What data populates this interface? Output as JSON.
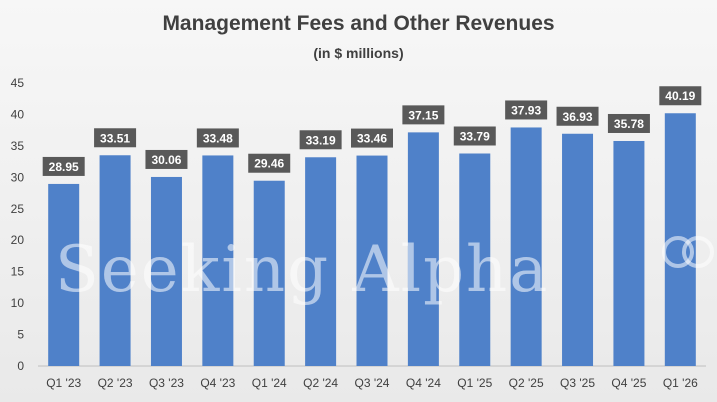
{
  "chart_data": {
    "type": "bar",
    "title": "Management Fees and Other Revenues",
    "subtitle": "(in $ millions)",
    "categories": [
      "Q1 '23",
      "Q2 '23",
      "Q3 '23",
      "Q4 '23",
      "Q1 '24",
      "Q2 '24",
      "Q3 '24",
      "Q4 '24",
      "Q1 '25",
      "Q2 '25",
      "Q3 '25",
      "Q4 '25",
      "Q1 '26"
    ],
    "values": [
      28.95,
      33.51,
      30.06,
      33.48,
      29.46,
      33.19,
      33.46,
      37.15,
      33.79,
      37.93,
      36.93,
      35.78,
      40.19
    ],
    "ylim": [
      0,
      45
    ],
    "yticks": [
      0,
      5,
      10,
      15,
      20,
      25,
      30,
      35,
      40,
      45
    ],
    "grid": false,
    "bar_color": "#4f81c9",
    "label_bg_color": "#595959",
    "label_text_color": "#ffffff"
  },
  "watermark": "Seeking Alpha"
}
